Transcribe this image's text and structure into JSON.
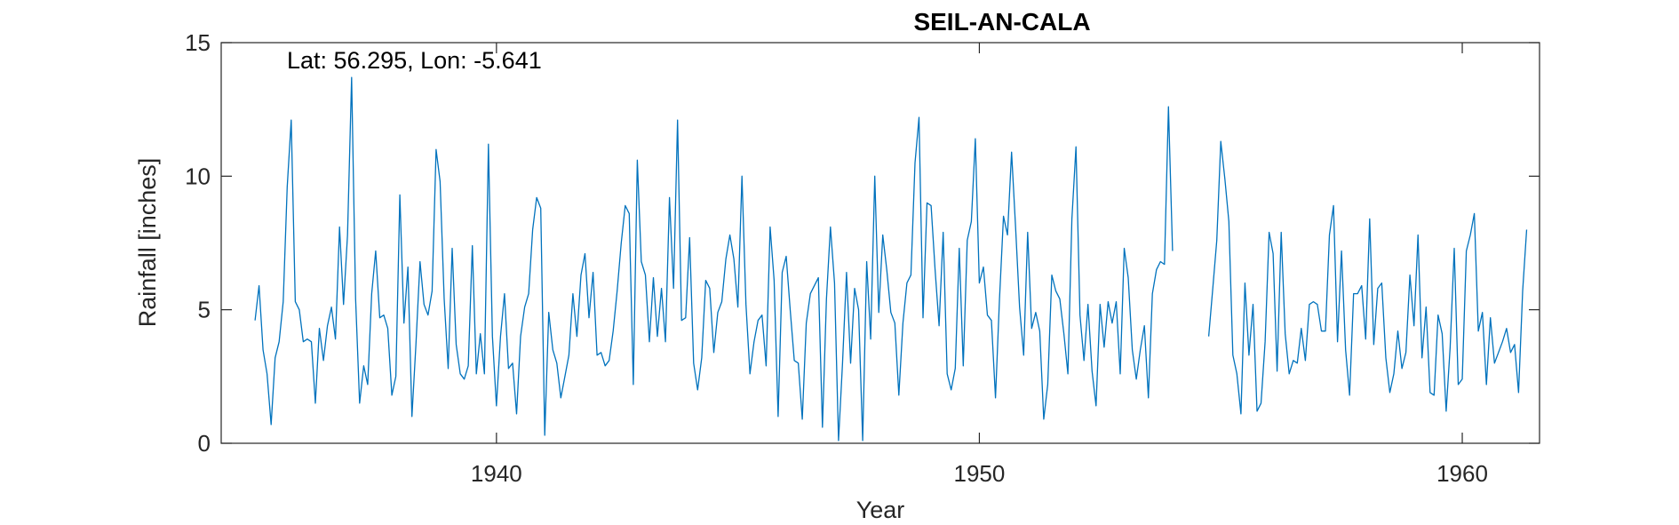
{
  "chart_data": {
    "type": "line",
    "title": "SEIL-AN-CALA",
    "annotation": "Lat: 56.295, Lon: -5.641",
    "xlabel": "Year",
    "ylabel": "Rainfall [inches]",
    "xlim": [
      1934.3,
      1961.6
    ],
    "ylim": [
      0,
      15
    ],
    "xticks": [
      1940,
      1950,
      1960
    ],
    "yticks": [
      0,
      5,
      10,
      15
    ],
    "grid": false,
    "line_color": "#0072BD",
    "series": [
      {
        "start_year": 1935.0,
        "step": 0.0833333,
        "values": [
          4.6,
          5.9,
          3.5,
          2.6,
          0.7,
          3.2,
          3.8,
          5.3,
          9.6,
          12.1,
          5.3,
          5.0,
          3.8,
          3.9,
          3.8,
          1.5,
          4.3,
          3.1,
          4.4,
          5.1,
          3.9,
          8.1,
          5.2,
          7.8,
          13.7,
          5.4,
          1.5,
          2.9,
          2.2,
          5.6,
          7.2,
          4.7,
          4.8,
          4.3,
          1.8,
          2.5,
          9.3,
          4.5,
          6.6,
          1.0,
          3.7,
          6.8,
          5.2,
          4.8,
          5.7,
          11.0,
          9.8,
          5.4,
          2.8,
          7.3,
          3.7,
          2.6,
          2.4,
          2.9,
          7.4,
          2.6,
          4.1,
          2.6,
          11.2,
          4.0,
          1.4,
          4.0,
          5.6,
          2.8,
          3.0,
          1.1,
          4.0,
          5.1,
          5.6,
          8.0,
          9.2,
          8.8,
          0.3,
          4.9,
          3.5,
          3.0,
          1.7,
          2.5,
          3.3,
          5.6,
          4.0,
          6.3,
          7.1,
          4.7,
          6.4,
          3.3,
          3.4,
          2.9,
          3.1,
          4.2,
          5.7,
          7.5,
          8.9,
          8.6,
          2.2,
          10.6,
          6.8,
          6.3,
          3.8,
          6.2,
          4.0,
          5.8,
          3.8,
          9.2,
          5.8,
          12.1,
          4.6,
          4.7,
          7.7,
          3.0,
          2.0,
          3.2,
          6.1,
          5.8,
          3.4,
          4.9,
          5.3,
          6.9,
          7.8,
          6.9,
          5.1,
          10.0,
          5.2,
          2.6,
          3.8,
          4.6,
          4.8,
          2.9,
          8.1,
          6.1,
          1.0,
          6.4,
          7.0,
          5.0,
          3.1,
          3.0,
          0.9,
          4.5,
          5.6,
          5.9,
          6.2,
          0.6,
          5.4,
          8.1,
          6.0,
          0.1,
          3.0,
          6.4,
          3.0,
          5.8,
          5.0,
          0.1,
          6.8,
          3.9,
          10.0,
          4.9,
          7.8,
          6.5,
          4.9,
          4.5,
          1.8,
          4.5,
          6.0,
          6.3,
          10.5,
          12.2,
          4.7,
          9.0,
          8.9,
          6.5,
          4.4,
          7.9,
          2.6,
          2.0,
          2.8,
          7.3,
          2.9,
          7.6,
          8.3,
          11.4,
          6.0,
          6.6,
          4.8,
          4.6,
          1.7,
          5.4,
          8.5,
          7.8,
          10.9,
          8.1,
          5.1,
          3.3,
          7.9,
          4.3,
          4.9,
          4.2,
          0.9,
          2.2,
          6.3,
          5.7,
          5.4,
          4.1,
          2.6,
          8.4,
          11.1,
          4.8,
          3.1,
          5.2,
          2.7,
          1.4,
          5.2,
          3.6,
          5.3,
          4.5,
          5.3,
          2.6,
          7.3,
          6.2,
          3.5,
          2.4,
          3.5,
          4.4,
          1.7,
          5.6,
          6.5,
          6.8,
          6.7,
          12.6,
          7.2,
          null,
          null,
          null,
          null,
          null,
          null,
          null,
          null,
          4.0,
          5.8,
          7.6,
          11.3,
          9.9,
          8.3,
          3.3,
          2.6,
          1.1,
          6.0,
          3.3,
          5.2,
          1.2,
          1.5,
          3.8,
          7.9,
          7.1,
          2.7,
          7.9,
          4.1,
          2.6,
          3.1,
          3.0,
          4.3,
          3.1,
          5.2,
          5.3,
          5.2,
          4.2,
          4.2,
          7.8,
          8.9,
          3.8,
          7.2,
          3.5,
          1.8,
          5.6,
          5.6,
          5.9,
          3.9,
          8.4,
          3.7,
          5.8,
          6.0,
          3.2,
          1.9,
          2.6,
          4.2,
          2.8,
          3.4,
          6.3,
          4.4,
          7.8,
          3.2,
          5.1,
          1.9,
          1.8,
          4.8,
          4.1,
          1.2,
          3.6,
          7.3,
          2.2,
          2.4,
          7.2,
          7.8,
          8.6,
          4.2,
          4.9,
          2.2,
          4.7,
          3.0,
          3.4,
          3.8,
          4.3,
          3.4,
          3.7,
          1.9,
          5.7,
          8.0
        ]
      }
    ]
  }
}
